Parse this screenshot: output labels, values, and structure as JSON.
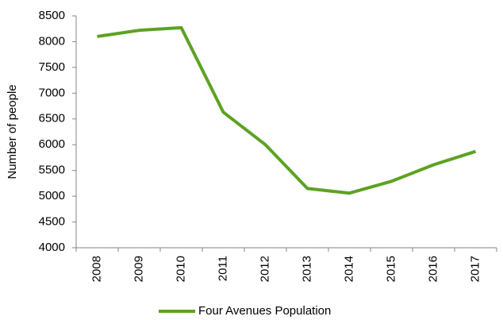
{
  "chart_data": {
    "type": "line",
    "y_label": "Number of people",
    "categories": [
      "2008",
      "2009",
      "2010",
      "2011",
      "2012",
      "2013",
      "2014",
      "2015",
      "2016",
      "2017"
    ],
    "series": [
      {
        "name": "Four Avenues Population",
        "color": "#5da223",
        "values": [
          8100,
          8220,
          8270,
          6630,
          6000,
          5150,
          5060,
          5290,
          5610,
          5870
        ]
      }
    ],
    "ylim": [
      4000,
      8500
    ],
    "yticks": [
      4000,
      4500,
      5000,
      5500,
      6000,
      6500,
      7000,
      7500,
      8000,
      8500
    ],
    "grid": false,
    "legend": "bottom"
  }
}
